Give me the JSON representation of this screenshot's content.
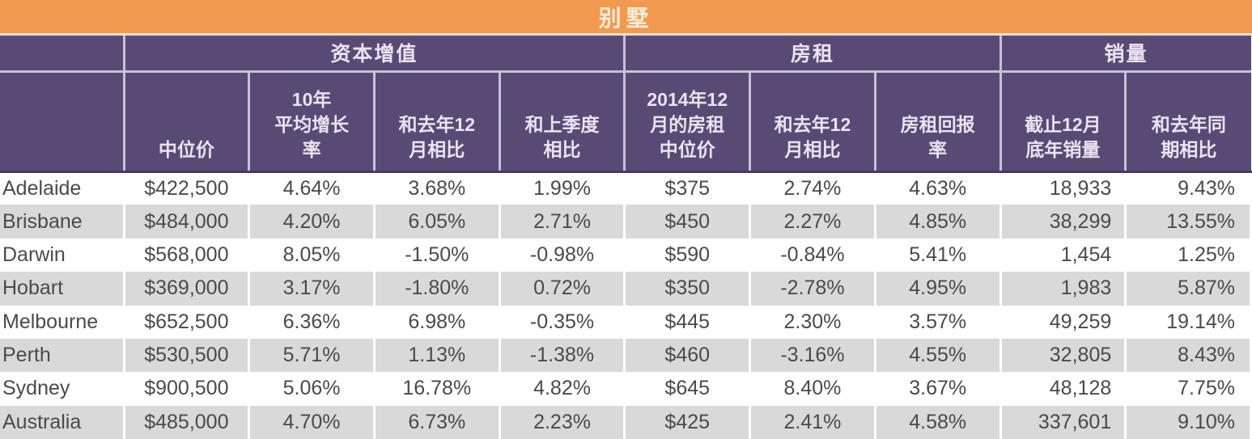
{
  "banner": {
    "title": "别墅"
  },
  "table": {
    "groups": [
      {
        "label": "资本增值",
        "span": 4
      },
      {
        "label": "房租",
        "span": 3
      },
      {
        "label": "销量",
        "span": 2
      }
    ],
    "sub_headers": [
      "中位价",
      "10年\n平均增长\n率",
      "和去年12\n月相比",
      "和上季度\n相比",
      "2014年12\n月的房租\n中位价",
      "和去年12\n月相比",
      "房租回报\n率",
      "截止12月\n底年销量",
      "和去年同\n期相比"
    ],
    "rows": [
      [
        "Adelaide",
        "$422,500",
        "4.64%",
        "3.68%",
        "1.99%",
        "$375",
        "2.74%",
        "4.63%",
        "18,933",
        "9.43%"
      ],
      [
        "Brisbane",
        "$484,000",
        "4.20%",
        "6.05%",
        "2.71%",
        "$450",
        "2.27%",
        "4.85%",
        "38,299",
        "13.55%"
      ],
      [
        "Darwin",
        "$568,000",
        "8.05%",
        "-1.50%",
        "-0.98%",
        "$590",
        "-0.84%",
        "5.41%",
        "1,454",
        "1.25%"
      ],
      [
        "Hobart",
        "$369,000",
        "3.17%",
        "-1.80%",
        "0.72%",
        "$350",
        "-2.78%",
        "4.95%",
        "1,983",
        "5.87%"
      ],
      [
        "Melbourne",
        "$652,500",
        "6.36%",
        "6.98%",
        "-0.35%",
        "$445",
        "2.30%",
        "3.57%",
        "49,259",
        "19.14%"
      ],
      [
        "Perth",
        "$530,500",
        "5.71%",
        "1.13%",
        "-1.38%",
        "$460",
        "-3.16%",
        "4.55%",
        "32,805",
        "8.43%"
      ],
      [
        "Sydney",
        "$900,500",
        "5.06%",
        "16.78%",
        "4.82%",
        "$645",
        "8.40%",
        "3.67%",
        "48,128",
        "7.75%"
      ],
      [
        "Australia",
        "$485,000",
        "4.70%",
        "6.73%",
        "2.23%",
        "$425",
        "2.41%",
        "4.58%",
        "337,601",
        "9.10%"
      ]
    ]
  },
  "colors": {
    "banner_bg": "#F29A4F",
    "banner_text": "#F7ECDA",
    "header_bg": "#594A75",
    "header_text": "#EAE3F1",
    "header_line": "#C9C0D8",
    "stripe": "#D9D9D9",
    "data_text": "#4A4A4A"
  },
  "chart_data": {
    "type": "table",
    "title": "别墅",
    "column_groups": [
      {
        "label": "资本增值",
        "columns": [
          "中位价",
          "10年平均增长率",
          "和去年12月相比",
          "和上季度相比"
        ]
      },
      {
        "label": "房租",
        "columns": [
          "2014年12月的房租中位价",
          "和去年12月相比",
          "房租回报率"
        ]
      },
      {
        "label": "销量",
        "columns": [
          "截止12月底年销量",
          "和去年同期相比"
        ]
      }
    ],
    "rows": [
      {
        "city": "Adelaide",
        "median_price": 422500,
        "growth_10yr_pct": 4.64,
        "vs_last_dec_pct": 3.68,
        "vs_last_quarter_pct": 1.99,
        "rent_median": 375,
        "rent_vs_last_dec_pct": 2.74,
        "rent_yield_pct": 4.63,
        "annual_sales": 18933,
        "sales_vs_last_year_pct": 9.43
      },
      {
        "city": "Brisbane",
        "median_price": 484000,
        "growth_10yr_pct": 4.2,
        "vs_last_dec_pct": 6.05,
        "vs_last_quarter_pct": 2.71,
        "rent_median": 450,
        "rent_vs_last_dec_pct": 2.27,
        "rent_yield_pct": 4.85,
        "annual_sales": 38299,
        "sales_vs_last_year_pct": 13.55
      },
      {
        "city": "Darwin",
        "median_price": 568000,
        "growth_10yr_pct": 8.05,
        "vs_last_dec_pct": -1.5,
        "vs_last_quarter_pct": -0.98,
        "rent_median": 590,
        "rent_vs_last_dec_pct": -0.84,
        "rent_yield_pct": 5.41,
        "annual_sales": 1454,
        "sales_vs_last_year_pct": 1.25
      },
      {
        "city": "Hobart",
        "median_price": 369000,
        "growth_10yr_pct": 3.17,
        "vs_last_dec_pct": -1.8,
        "vs_last_quarter_pct": 0.72,
        "rent_median": 350,
        "rent_vs_last_dec_pct": -2.78,
        "rent_yield_pct": 4.95,
        "annual_sales": 1983,
        "sales_vs_last_year_pct": 5.87
      },
      {
        "city": "Melbourne",
        "median_price": 652500,
        "growth_10yr_pct": 6.36,
        "vs_last_dec_pct": 6.98,
        "vs_last_quarter_pct": -0.35,
        "rent_median": 445,
        "rent_vs_last_dec_pct": 2.3,
        "rent_yield_pct": 3.57,
        "annual_sales": 49259,
        "sales_vs_last_year_pct": 19.14
      },
      {
        "city": "Perth",
        "median_price": 530500,
        "growth_10yr_pct": 5.71,
        "vs_last_dec_pct": 1.13,
        "vs_last_quarter_pct": -1.38,
        "rent_median": 460,
        "rent_vs_last_dec_pct": -3.16,
        "rent_yield_pct": 4.55,
        "annual_sales": 32805,
        "sales_vs_last_year_pct": 8.43
      },
      {
        "city": "Sydney",
        "median_price": 900500,
        "growth_10yr_pct": 5.06,
        "vs_last_dec_pct": 16.78,
        "vs_last_quarter_pct": 4.82,
        "rent_median": 645,
        "rent_vs_last_dec_pct": 8.4,
        "rent_yield_pct": 3.67,
        "annual_sales": 48128,
        "sales_vs_last_year_pct": 7.75
      },
      {
        "city": "Australia",
        "median_price": 485000,
        "growth_10yr_pct": 4.7,
        "vs_last_dec_pct": 6.73,
        "vs_last_quarter_pct": 2.23,
        "rent_median": 425,
        "rent_vs_last_dec_pct": 2.41,
        "rent_yield_pct": 4.58,
        "annual_sales": 337601,
        "sales_vs_last_year_pct": 9.1
      }
    ]
  }
}
